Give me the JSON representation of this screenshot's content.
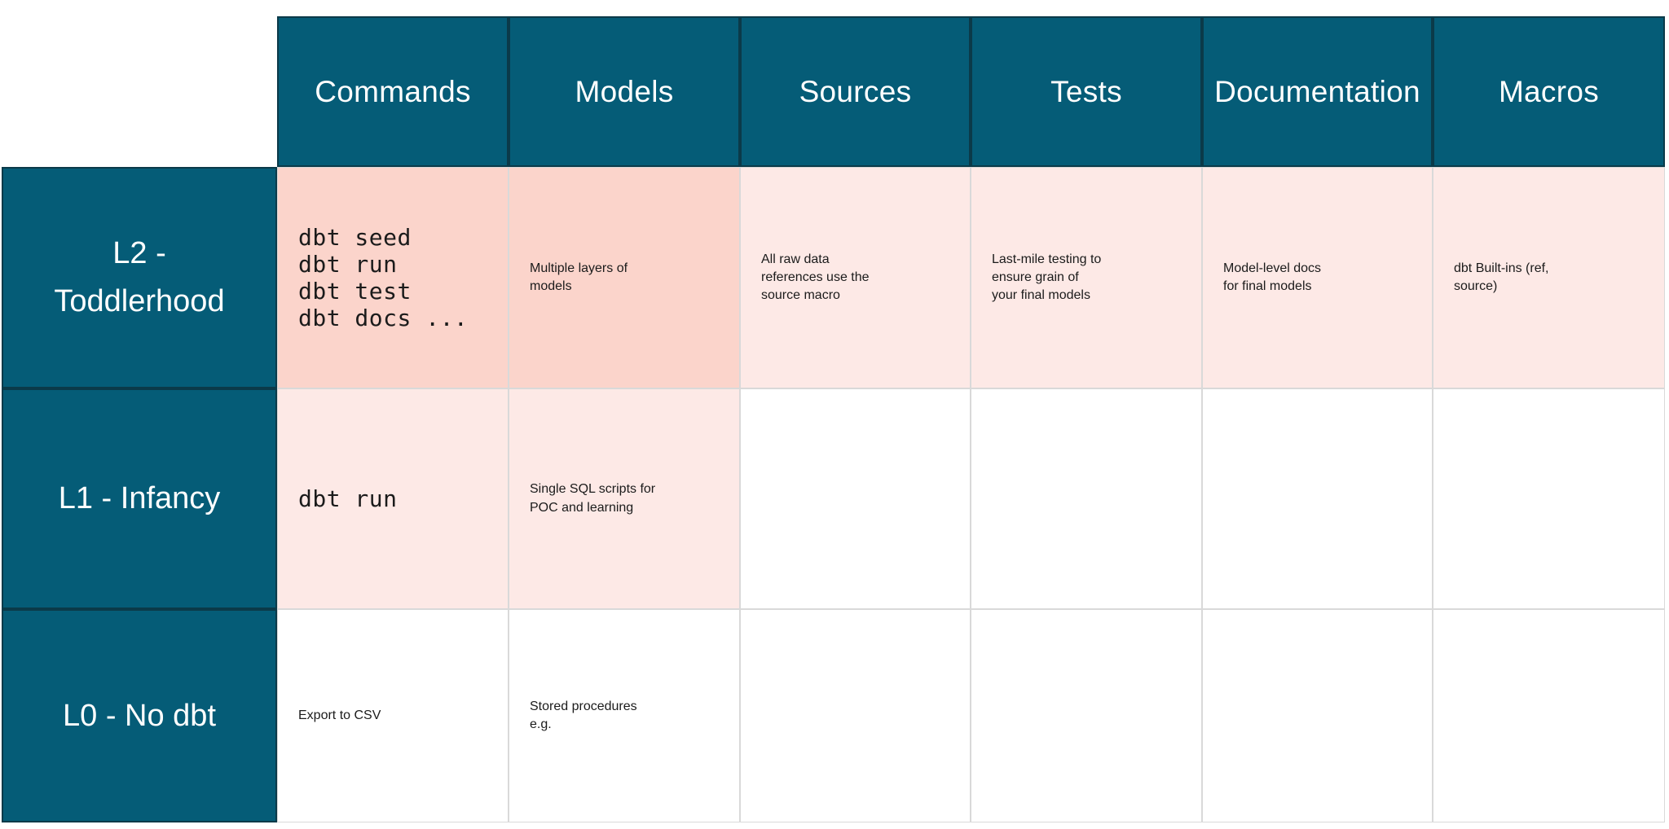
{
  "table": {
    "name": "dbt-maturity-table",
    "column_headers": [
      {
        "id": "commands",
        "label": "Commands"
      },
      {
        "id": "models",
        "label": "Models"
      },
      {
        "id": "sources",
        "label": "Sources"
      },
      {
        "id": "tests",
        "label": "Tests"
      },
      {
        "id": "documentation",
        "label": "Documentation"
      },
      {
        "id": "macros",
        "label": "Macros"
      }
    ],
    "rows": [
      {
        "id": "l2",
        "label": "L2 -\nToddlerhood",
        "cells": [
          {
            "col": "commands",
            "text": "dbt seed\ndbt run\ndbt test\ndbt docs ...",
            "mono": true,
            "bg": "salmon"
          },
          {
            "col": "models",
            "text": "Multiple layers of\nmodels",
            "mono": false,
            "bg": "salmon"
          },
          {
            "col": "sources",
            "text": "All raw data\nreferences use the\nsource macro",
            "mono": false,
            "bg": "pink"
          },
          {
            "col": "tests",
            "text": "Last-mile testing to\nensure grain of\nyour final models",
            "mono": false,
            "bg": "pink"
          },
          {
            "col": "documentation",
            "text": "Model-level docs\nfor final models",
            "mono": false,
            "bg": "pink"
          },
          {
            "col": "macros",
            "text": "dbt Built-ins (ref,\nsource)",
            "mono": false,
            "bg": "pink"
          }
        ]
      },
      {
        "id": "l1",
        "label": "L1 - Infancy",
        "cells": [
          {
            "col": "commands",
            "text": "dbt run",
            "mono": true,
            "bg": "pink"
          },
          {
            "col": "models",
            "text": "Single SQL scripts for\nPOC and learning",
            "mono": false,
            "bg": "pink"
          },
          {
            "col": "sources",
            "text": "",
            "mono": false,
            "bg": "white"
          },
          {
            "col": "tests",
            "text": "",
            "mono": false,
            "bg": "white"
          },
          {
            "col": "documentation",
            "text": "",
            "mono": false,
            "bg": "white"
          },
          {
            "col": "macros",
            "text": "",
            "mono": false,
            "bg": "white"
          }
        ]
      },
      {
        "id": "l0",
        "label": "L0 - No dbt",
        "cells": [
          {
            "col": "commands",
            "text": "Export to CSV",
            "mono": false,
            "bg": "white"
          },
          {
            "col": "models",
            "text": "Stored procedures\ne.g.",
            "mono": false,
            "bg": "white"
          },
          {
            "col": "sources",
            "text": "",
            "mono": false,
            "bg": "white"
          },
          {
            "col": "tests",
            "text": "",
            "mono": false,
            "bg": "white"
          },
          {
            "col": "documentation",
            "text": "",
            "mono": false,
            "bg": "white"
          },
          {
            "col": "macros",
            "text": "",
            "mono": false,
            "bg": "white"
          }
        ]
      }
    ],
    "colors": {
      "teal": "#055C77",
      "teal_border": "#0B3A49",
      "salmon": "#FBD4CB",
      "pink": "#FDE9E6",
      "cell_border": "#D9D9D9",
      "text": "#1B1B1B",
      "header_text": "#FFFFFF"
    }
  }
}
